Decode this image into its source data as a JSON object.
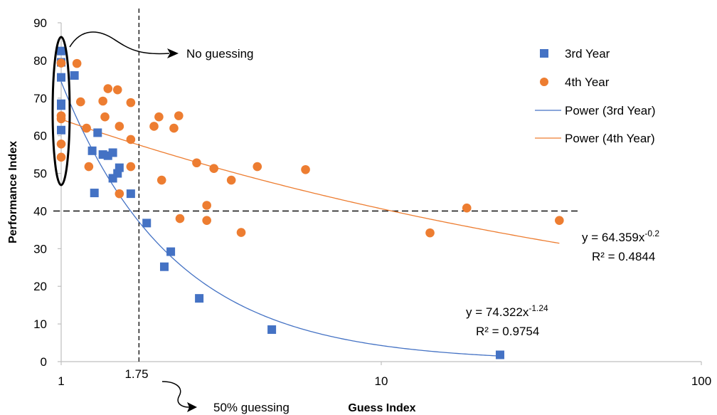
{
  "chart_data": {
    "type": "scatter",
    "title": "",
    "xlabel": "Guess Index",
    "ylabel": "Performance Index",
    "x_scale": "log",
    "xlim": [
      1,
      100
    ],
    "ylim": [
      0,
      90
    ],
    "x_ticks": [
      "1",
      "10",
      "100"
    ],
    "y_ticks": [
      "0",
      "10",
      "20",
      "30",
      "40",
      "50",
      "60",
      "70",
      "80",
      "90"
    ],
    "grid": false,
    "legend_position": "top-right",
    "series": [
      {
        "name": "3rd Year",
        "marker": "square",
        "color": "#4472C4",
        "points": [
          [
            1.0,
            82.5
          ],
          [
            1.0,
            79.5
          ],
          [
            1.0,
            75.5
          ],
          [
            1.0,
            68.5
          ],
          [
            1.0,
            68.0
          ],
          [
            1.0,
            61.5
          ],
          [
            1.1,
            76.0
          ],
          [
            1.25,
            56.0
          ],
          [
            1.27,
            44.8
          ],
          [
            1.3,
            60.8
          ],
          [
            1.35,
            55.0
          ],
          [
            1.4,
            54.7
          ],
          [
            1.45,
            55.5
          ],
          [
            1.45,
            48.7
          ],
          [
            1.5,
            50.0
          ],
          [
            1.52,
            51.5
          ],
          [
            1.65,
            44.6
          ],
          [
            1.85,
            36.8
          ],
          [
            2.1,
            25.2
          ],
          [
            2.2,
            29.2
          ],
          [
            2.7,
            16.8
          ],
          [
            4.55,
            8.5
          ],
          [
            23.5,
            1.8
          ]
        ]
      },
      {
        "name": "4th Year",
        "marker": "circle",
        "color": "#ED7D31",
        "points": [
          [
            1.0,
            79.3
          ],
          [
            1.0,
            65.3
          ],
          [
            1.0,
            64.5
          ],
          [
            1.0,
            57.8
          ],
          [
            1.0,
            54.3
          ],
          [
            1.12,
            79.2
          ],
          [
            1.15,
            69.0
          ],
          [
            1.2,
            62.0
          ],
          [
            1.22,
            51.8
          ],
          [
            1.35,
            69.2
          ],
          [
            1.37,
            65.0
          ],
          [
            1.4,
            72.5
          ],
          [
            1.5,
            72.2
          ],
          [
            1.52,
            62.5
          ],
          [
            1.52,
            44.6
          ],
          [
            1.65,
            68.8
          ],
          [
            1.65,
            59.0
          ],
          [
            1.65,
            51.8
          ],
          [
            1.95,
            62.5
          ],
          [
            2.02,
            65.0
          ],
          [
            2.06,
            48.2
          ],
          [
            2.25,
            62.0
          ],
          [
            2.33,
            65.3
          ],
          [
            2.35,
            38.0
          ],
          [
            2.65,
            52.8
          ],
          [
            2.85,
            41.5
          ],
          [
            2.85,
            37.5
          ],
          [
            3.0,
            51.3
          ],
          [
            3.4,
            48.2
          ],
          [
            3.65,
            34.3
          ],
          [
            4.1,
            51.8
          ],
          [
            5.8,
            51.0
          ],
          [
            14.2,
            34.2
          ],
          [
            18.5,
            40.8
          ],
          [
            36.0,
            37.5
          ]
        ]
      }
    ],
    "trendlines": [
      {
        "name": "Power (3rd Year)",
        "type": "power",
        "a": 74.322,
        "b": -1.24,
        "color": "#4472C4",
        "x_range": [
          1,
          24
        ]
      },
      {
        "name": "Power (4th Year)",
        "type": "power",
        "a": 64.359,
        "b": -0.2,
        "color": "#ED7D31",
        "x_range": [
          1,
          36
        ]
      }
    ],
    "legend": [
      "3rd Year",
      "4th Year",
      "Power (3rd Year)",
      "Power (4th Year)"
    ],
    "reference_lines": {
      "x": 1.75,
      "y": 40,
      "x_label": "1.75"
    },
    "equations": [
      {
        "prefix": "y = 64.359x",
        "exponent": "-0.2",
        "r2": "R² = 0.4844"
      },
      {
        "prefix": "y = 74.322x",
        "exponent": "-1.24",
        "r2": "R² = 0.9754"
      }
    ],
    "annotations": {
      "no_guessing": "No guessing",
      "fifty_guessing": "50% guessing"
    }
  }
}
